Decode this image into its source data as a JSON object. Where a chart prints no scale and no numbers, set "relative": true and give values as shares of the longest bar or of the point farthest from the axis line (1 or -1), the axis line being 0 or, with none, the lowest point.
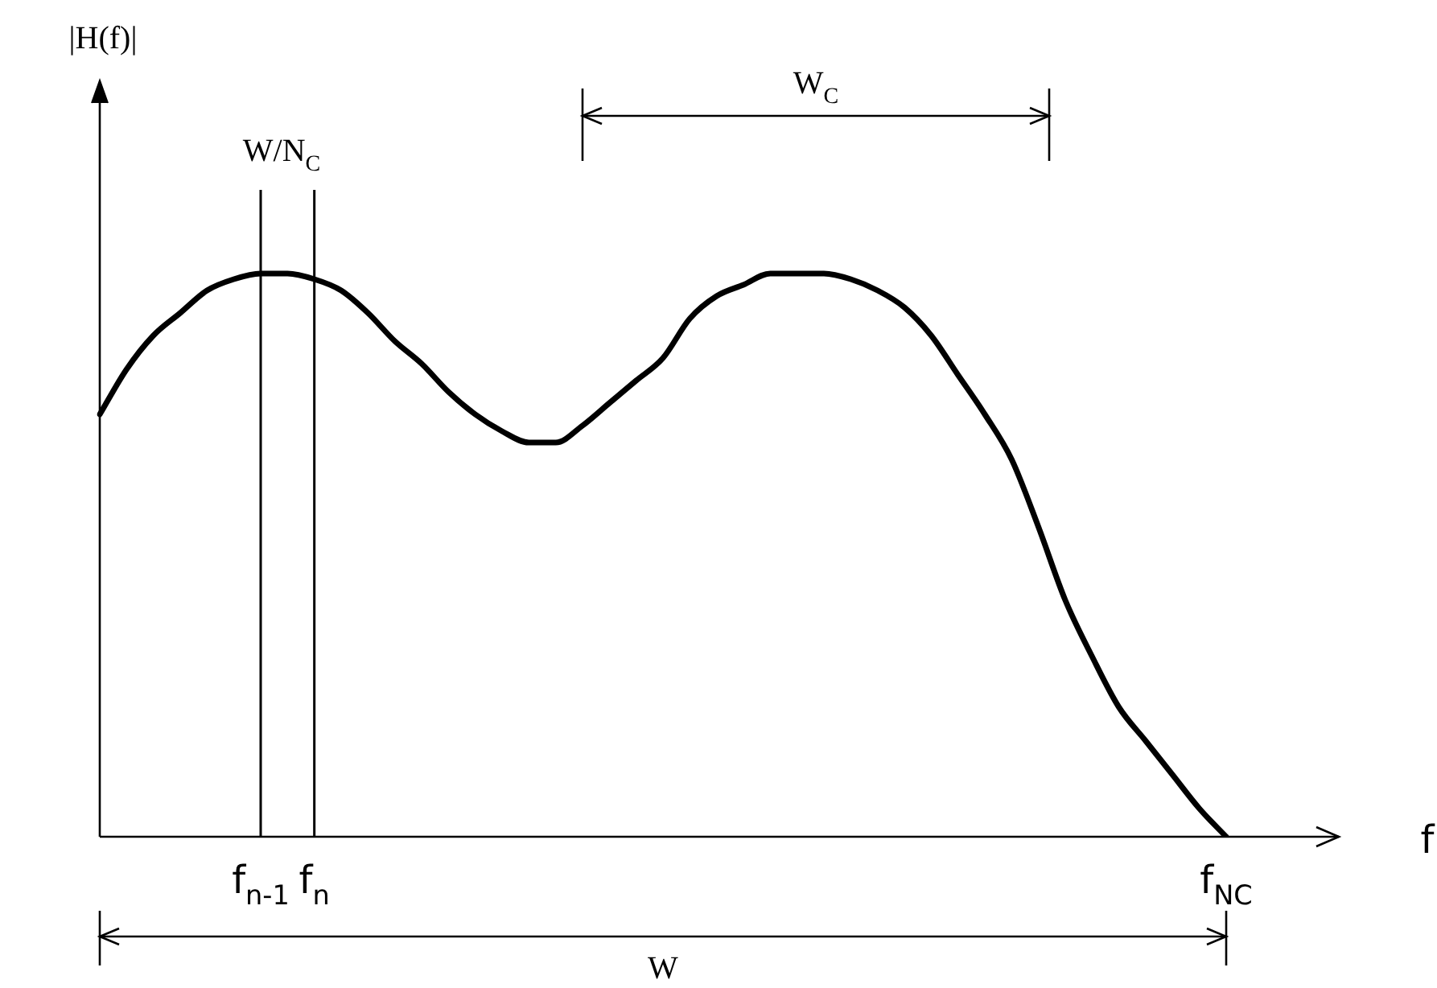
{
  "chart_data": {
    "type": "line",
    "relative": true,
    "xlabel": "f",
    "categories": [
      null,
      null,
      null,
      null,
      null,
      null,
      "f$_{n-1}$",
      null,
      "f$_{n}$",
      null,
      null,
      null,
      null,
      null,
      null,
      null,
      null,
      null,
      null,
      null,
      null,
      null,
      null,
      null,
      null,
      null,
      null,
      null,
      null,
      null,
      null,
      null,
      null,
      null,
      null,
      null,
      null,
      null,
      null,
      null,
      null,
      null,
      "f$_{NC}$"
    ],
    "values": [
      0.75,
      0.83,
      0.89,
      0.93,
      0.97,
      0.99,
      1.0,
      1.0,
      0.99,
      0.97,
      0.93,
      0.88,
      0.84,
      0.79,
      0.75,
      0.72,
      0.7,
      0.7,
      0.73,
      0.77,
      0.81,
      0.85,
      0.92,
      0.96,
      0.98,
      1.0,
      1.0,
      1.0,
      0.99,
      0.97,
      0.94,
      0.89,
      0.82,
      0.75,
      0.67,
      0.55,
      0.42,
      0.32,
      0.23,
      0.17,
      0.11,
      0.05,
      0.0
    ],
    "color": "#000000",
    "marker": "none",
    "line_style": "solid",
    "grid": false,
    "legend": false,
    "ref_lines": [
      {
        "axis": "x",
        "value": "f$_{n-1}$",
        "color": "#000000"
      },
      {
        "axis": "x",
        "value": "f$_{n}$",
        "color": "#000000"
      }
    ],
    "annotations": [
      "W/N$_{C}$",
      "W$_{C}$",
      "W",
      "|H(f)|"
    ]
  }
}
